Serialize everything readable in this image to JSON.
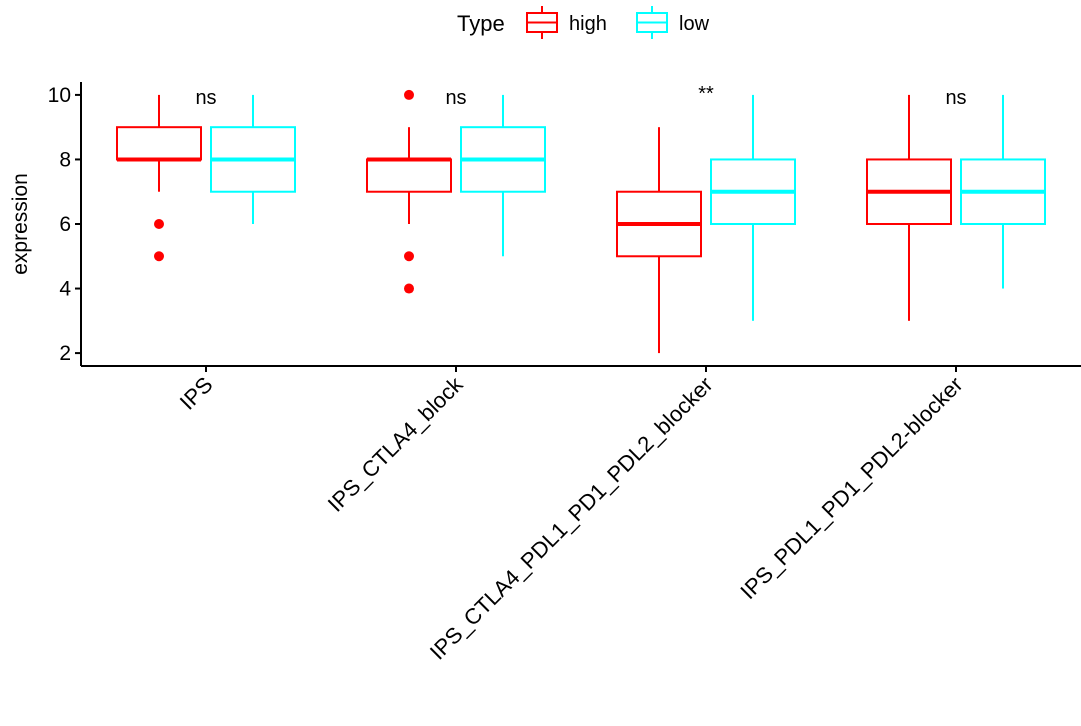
{
  "chart_data": {
    "type": "boxplot",
    "ylabel": "expression",
    "ylim": [
      1.6,
      10.4
    ],
    "yticks": [
      2,
      4,
      6,
      8,
      10
    ],
    "categories": [
      "IPS",
      "IPS_CTLA4_block",
      "IPS_CTLA4_PDL1_PD1_PDL2_blocker",
      "IPS_PDL1_PD1_PDL2-blocker"
    ],
    "annotations": [
      "ns",
      "ns",
      "**",
      "ns"
    ],
    "legend": {
      "title": "Type",
      "position": "top"
    },
    "series": [
      {
        "name": "high",
        "color": "#FF0000",
        "boxes": [
          {
            "whisker_low": 7,
            "q1": 8,
            "median": 8,
            "q3": 9,
            "whisker_high": 10,
            "outliers": [
              6,
              5
            ]
          },
          {
            "whisker_low": 6,
            "q1": 7,
            "median": 8,
            "q3": 8,
            "whisker_high": 9,
            "outliers": [
              10,
              5,
              4
            ]
          },
          {
            "whisker_low": 2,
            "q1": 5,
            "median": 6,
            "q3": 7,
            "whisker_high": 9,
            "outliers": []
          },
          {
            "whisker_low": 3,
            "q1": 6,
            "median": 7,
            "q3": 8,
            "whisker_high": 10,
            "outliers": []
          }
        ]
      },
      {
        "name": "low",
        "color": "#00FFFF",
        "boxes": [
          {
            "whisker_low": 6,
            "q1": 7,
            "median": 8,
            "q3": 9,
            "whisker_high": 10,
            "outliers": []
          },
          {
            "whisker_low": 5,
            "q1": 7,
            "median": 8,
            "q3": 9,
            "whisker_high": 10,
            "outliers": []
          },
          {
            "whisker_low": 3,
            "q1": 6,
            "median": 7,
            "q3": 8,
            "whisker_high": 10,
            "outliers": []
          },
          {
            "whisker_low": 4,
            "q1": 6,
            "median": 7,
            "q3": 8,
            "whisker_high": 10,
            "outliers": []
          }
        ]
      }
    ]
  }
}
